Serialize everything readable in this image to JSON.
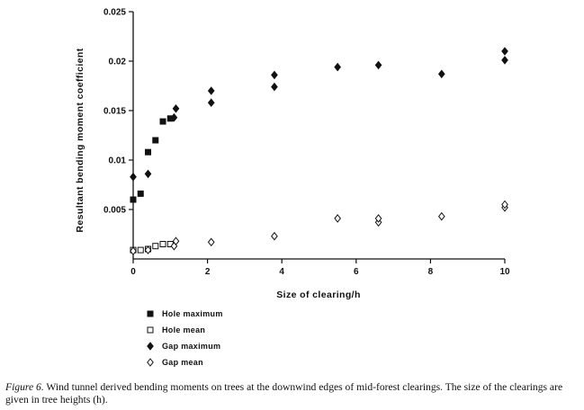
{
  "chart_data": {
    "type": "scatter",
    "xlabel": "Size of clearing/h",
    "ylabel": "Resultant bending moment coefficient",
    "xlim": [
      0,
      10
    ],
    "ylim": [
      0,
      0.025
    ],
    "x_ticks": [
      0,
      2,
      4,
      6,
      8,
      10
    ],
    "x_tick_labels": [
      "0",
      "2",
      "4",
      "6",
      "8",
      "10"
    ],
    "y_ticks": [
      0.005,
      0.01,
      0.015,
      0.02,
      0.025
    ],
    "y_tick_labels": [
      "0.005",
      "0.01",
      "0.015",
      "0.02",
      "0.025"
    ],
    "grid": false,
    "legend_position": "below",
    "series": [
      {
        "name": "Hole maximum",
        "marker": "filled-square",
        "x": [
          0.0,
          0.2,
          0.4,
          0.6,
          0.8,
          1.0
        ],
        "y": [
          0.006,
          0.0066,
          0.0108,
          0.012,
          0.0139,
          0.0142
        ]
      },
      {
        "name": "Hole mean",
        "marker": "open-square",
        "x": [
          0.0,
          0.2,
          0.4,
          0.6,
          0.8,
          1.0
        ],
        "y": [
          0.0009,
          0.0009,
          0.001,
          0.0013,
          0.0015,
          0.0015
        ]
      },
      {
        "name": "Gap maximum",
        "marker": "filled-diamond",
        "x": [
          0.0,
          0.4,
          1.1,
          1.15,
          2.1,
          2.1,
          3.8,
          3.8,
          5.5,
          6.6,
          8.3,
          10.0,
          10.0
        ],
        "y": [
          0.0083,
          0.0086,
          0.0143,
          0.0152,
          0.0158,
          0.017,
          0.0174,
          0.0186,
          0.0194,
          0.0196,
          0.0187,
          0.0201,
          0.021
        ]
      },
      {
        "name": "Gap mean",
        "marker": "open-diamond",
        "x": [
          0.0,
          0.4,
          1.1,
          1.15,
          2.1,
          3.8,
          5.5,
          6.6,
          6.6,
          8.3,
          10.0,
          10.0
        ],
        "y": [
          0.0008,
          0.0009,
          0.0013,
          0.0018,
          0.0017,
          0.0023,
          0.0041,
          0.0037,
          0.0041,
          0.0043,
          0.0052,
          0.0055
        ]
      }
    ]
  },
  "caption": {
    "figure_label": "Figure 6.",
    "text": " Wind tunnel derived bending moments on trees at the downwind edges of mid-forest clearings. The size of the clearings are given in tree heights (h)."
  }
}
